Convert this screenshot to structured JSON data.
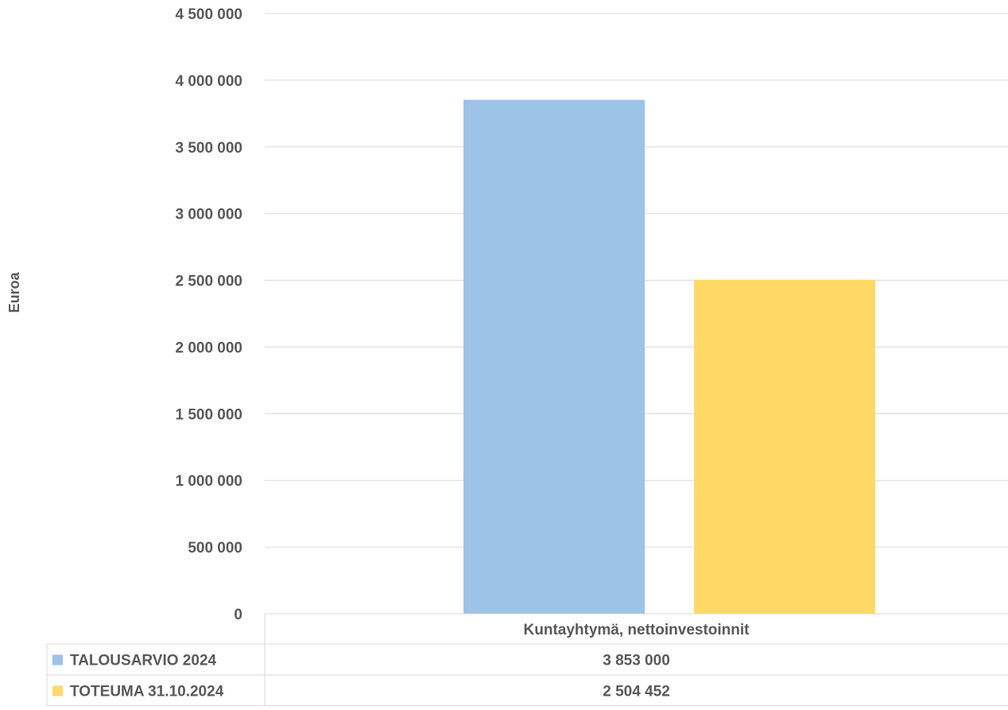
{
  "chart_data": {
    "type": "bar",
    "ylabel": "Euroa",
    "ylim": [
      0,
      4500000
    ],
    "yticks": [
      0,
      500000,
      1000000,
      1500000,
      2000000,
      2500000,
      3000000,
      3500000,
      4000000,
      4500000
    ],
    "ytick_labels": [
      "0",
      "500 000",
      "1 000 000",
      "1 500 000",
      "2 000 000",
      "2 500 000",
      "3 000 000",
      "3 500 000",
      "4 000 000",
      "4 500 000"
    ],
    "grid": true,
    "categories": [
      "Kuntayhtymä, nettoinvestoinnit"
    ],
    "series": [
      {
        "name": "TALOUSARVIO 2024",
        "color": "#9DC3E6",
        "values": [
          3853000
        ],
        "value_labels": [
          "3 853 000"
        ]
      },
      {
        "name": "TOTEUMA 31.10.2024",
        "color": "#FFD966",
        "values": [
          2504452
        ],
        "value_labels": [
          "2 504 452"
        ]
      }
    ],
    "legend": "data-table"
  }
}
